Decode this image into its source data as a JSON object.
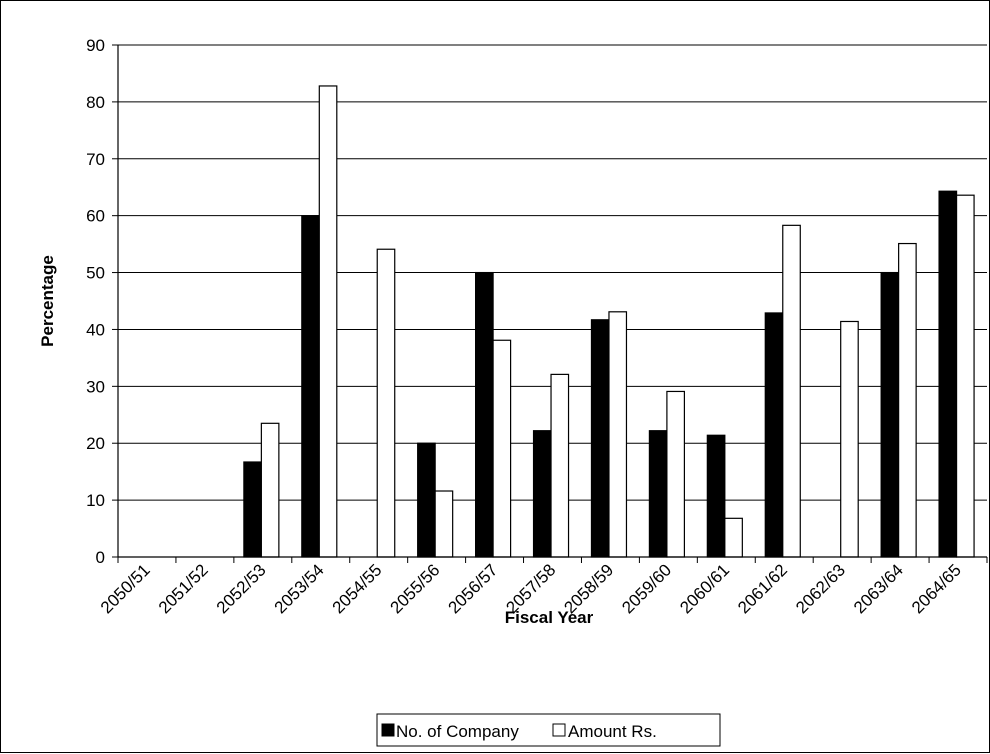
{
  "chart_data": {
    "type": "bar",
    "xlabel": "Fiscal Year",
    "ylabel": "Percentage",
    "ylim": [
      0,
      90
    ],
    "yticks": [
      0,
      10,
      20,
      30,
      40,
      50,
      60,
      70,
      80,
      90
    ],
    "grid": "horizontal",
    "legend_position": "bottom",
    "categories": [
      "2050/51",
      "2051/52",
      "2052/53",
      "2053/54",
      "2054/55",
      "2055/56",
      "2056/57",
      "2057/58",
      "2058/59",
      "2059/60",
      "2060/61",
      "2061/62",
      "2062/63",
      "2063/64",
      "2064/65"
    ],
    "series": [
      {
        "name": "No. of Company",
        "color": "#000000",
        "values": [
          0,
          0,
          16.7,
          60,
          0,
          20,
          50,
          22.2,
          41.7,
          22.2,
          21.4,
          42.9,
          0,
          50,
          64.3
        ]
      },
      {
        "name": "Amount Rs.",
        "color": "#ffffff",
        "values": [
          0,
          0,
          23.5,
          82.8,
          54.1,
          11.6,
          38.1,
          32.1,
          43.1,
          29.1,
          6.8,
          58.3,
          41.4,
          55.1,
          63.6
        ]
      }
    ]
  }
}
